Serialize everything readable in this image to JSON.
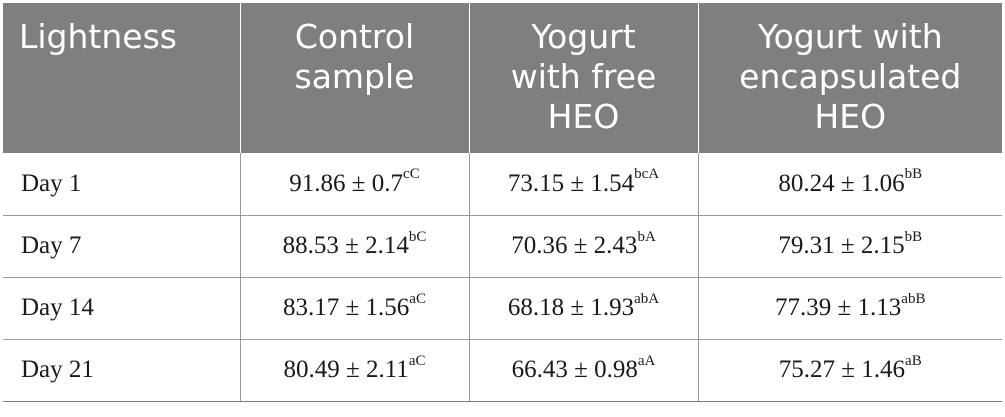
{
  "table": {
    "headers": [
      [
        "Lightness"
      ],
      [
        "Control",
        "sample"
      ],
      [
        "Yogurt",
        "with free",
        "HEO"
      ],
      [
        "Yogurt with",
        "encapsulated",
        "HEO"
      ]
    ],
    "rows": [
      {
        "label": "Day 1",
        "cells": [
          {
            "value": "91.86 ± 0.7",
            "sup": "cC"
          },
          {
            "value": "73.15 ± 1.54",
            "sup": "bcA"
          },
          {
            "value": "80.24 ± 1.06",
            "sup": "bB"
          }
        ]
      },
      {
        "label": "Day 7",
        "cells": [
          {
            "value": "88.53 ± 2.14",
            "sup": "bC"
          },
          {
            "value": "70.36 ± 2.43",
            "sup": "bA"
          },
          {
            "value": "79.31 ± 2.15",
            "sup": "bB"
          }
        ]
      },
      {
        "label": "Day 14",
        "cells": [
          {
            "value": "83.17 ± 1.56",
            "sup": "aC"
          },
          {
            "value": "68.18 ± 1.93",
            "sup": "abA"
          },
          {
            "value": "77.39 ± 1.13",
            "sup": "abB"
          }
        ]
      },
      {
        "label": "Day 21",
        "cells": [
          {
            "value": "80.49 ± 2.11",
            "sup": "aC"
          },
          {
            "value": "66.43 ± 0.98",
            "sup": "aA"
          },
          {
            "value": "75.27 ± 1.46",
            "sup": "aB"
          }
        ]
      }
    ]
  }
}
